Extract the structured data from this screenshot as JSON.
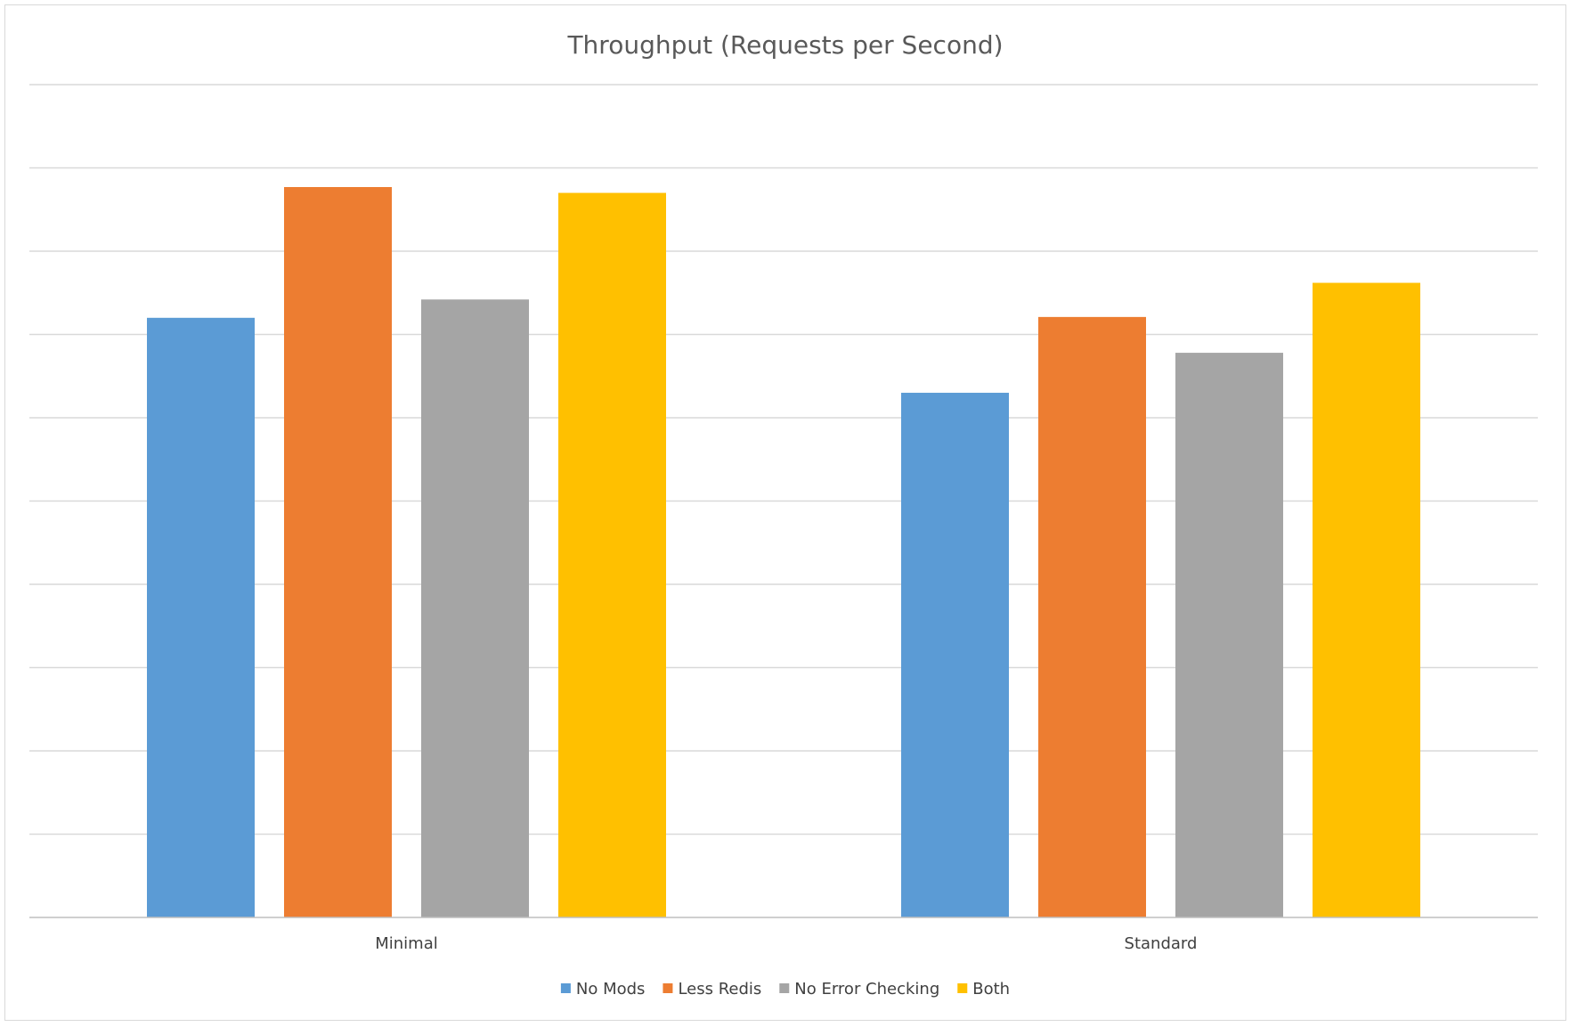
{
  "chart_data": {
    "type": "bar",
    "title": "Throughput (Requests per Second)",
    "xlabel": "",
    "ylabel": "",
    "categories": [
      "Minimal",
      "Standard"
    ],
    "series": [
      {
        "name": "No Mods",
        "color": "#5b9bd5",
        "values": [
          7.2,
          6.3
        ]
      },
      {
        "name": "Less Redis",
        "color": "#ed7d31",
        "values": [
          8.77,
          7.21
        ]
      },
      {
        "name": "No Error Checking",
        "color": "#a5a5a5",
        "values": [
          7.42,
          6.78
        ]
      },
      {
        "name": "Both",
        "color": "#ffc000",
        "values": [
          8.7,
          7.62
        ]
      }
    ],
    "ylim": [
      0,
      10
    ],
    "gridlines": 10,
    "grid": true,
    "y_tick_labels_shown": false,
    "legend_position": "bottom"
  }
}
